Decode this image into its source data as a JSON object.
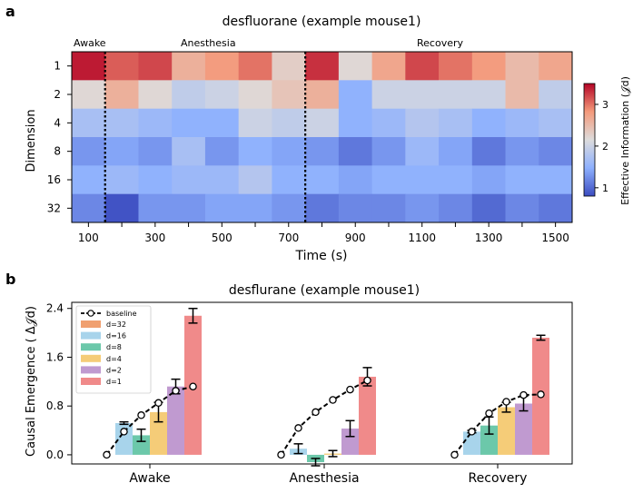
{
  "chart_data": [
    {
      "panel_label": "a",
      "type": "heatmap",
      "title": "desfluorane (example mouse1)",
      "xlabel": "Time (s)",
      "ylabel": "Dimension",
      "x_tick_labels": [
        "100",
        "300",
        "500",
        "700",
        "900",
        "1100",
        "1300",
        "1500"
      ],
      "y_tick_labels": [
        "1",
        "2",
        "4",
        "8",
        "16",
        "32"
      ],
      "phase_labels": [
        "Awake",
        "Anesthesia",
        "Recovery"
      ],
      "colorbar_label": "Effective Information (𝒥d)",
      "colorbar_ticks": [
        1,
        2,
        3
      ],
      "colorbar_range": [
        0.8,
        3.5
      ],
      "boundaries_after_column": [
        1,
        7
      ],
      "values": [
        [
          3.4,
          3.1,
          3.2,
          2.6,
          2.8,
          3.0,
          2.3,
          3.3,
          2.2,
          2.7,
          3.2,
          3.0,
          2.8,
          2.5,
          2.7
        ],
        [
          2.2,
          2.6,
          2.2,
          1.9,
          2.0,
          2.2,
          2.4,
          2.6,
          1.5,
          2.0,
          2.0,
          2.0,
          2.0,
          2.5,
          1.9
        ],
        [
          1.7,
          1.7,
          1.6,
          1.5,
          1.5,
          2.0,
          1.9,
          2.0,
          1.5,
          1.6,
          1.8,
          1.7,
          1.5,
          1.6,
          1.7
        ],
        [
          1.3,
          1.4,
          1.3,
          1.7,
          1.3,
          1.5,
          1.4,
          1.3,
          1.1,
          1.3,
          1.6,
          1.4,
          1.1,
          1.3,
          1.2
        ],
        [
          1.5,
          1.6,
          1.5,
          1.6,
          1.6,
          1.8,
          1.5,
          1.5,
          1.4,
          1.5,
          1.5,
          1.5,
          1.4,
          1.5,
          1.5
        ],
        [
          1.2,
          0.85,
          1.3,
          1.3,
          1.4,
          1.4,
          1.3,
          1.1,
          1.2,
          1.2,
          1.3,
          1.2,
          1.0,
          1.2,
          1.1
        ]
      ]
    },
    {
      "panel_label": "b",
      "type": "bar",
      "title": "desflurane (example mouse1)",
      "ylabel": "Causal Emergence ( Δ𝒥d)",
      "ylim": [
        -0.15,
        2.5
      ],
      "y_ticks": [
        0.0,
        0.8,
        1.6,
        2.4
      ],
      "categories": [
        "Awake",
        "Anesthesia",
        "Recovery"
      ],
      "legend_position": "top-left",
      "series": [
        {
          "name": "d=32",
          "color": "#f0a070",
          "values": [
            0.0,
            0.0,
            0.0
          ],
          "errors": [
            0.0,
            0.0,
            0.0
          ]
        },
        {
          "name": "d=16",
          "color": "#a8d4eb",
          "values": [
            0.52,
            0.1,
            0.38
          ],
          "errors": [
            0.02,
            0.08,
            0.02
          ]
        },
        {
          "name": "d=8",
          "color": "#6cc8aa",
          "values": [
            0.32,
            -0.12,
            0.48
          ],
          "errors": [
            0.1,
            0.06,
            0.14
          ]
        },
        {
          "name": "d=4",
          "color": "#f5cc78",
          "values": [
            0.7,
            0.02,
            0.78
          ],
          "errors": [
            0.16,
            0.05,
            0.08
          ]
        },
        {
          "name": "d=2",
          "color": "#c09ad0",
          "values": [
            1.12,
            0.43,
            0.84
          ],
          "errors": [
            0.12,
            0.13,
            0.12
          ]
        },
        {
          "name": "d=1",
          "color": "#f08a8a",
          "values": [
            2.28,
            1.28,
            1.92
          ],
          "errors": [
            0.12,
            0.15,
            0.04
          ]
        }
      ],
      "baseline": {
        "name": "baseline",
        "values": [
          [
            0.0,
            0.38,
            0.65,
            0.85,
            1.05,
            1.12
          ],
          [
            0.0,
            0.44,
            0.7,
            0.9,
            1.07,
            1.22
          ],
          [
            0.0,
            0.38,
            0.68,
            0.87,
            0.98,
            0.99
          ]
        ]
      }
    }
  ]
}
